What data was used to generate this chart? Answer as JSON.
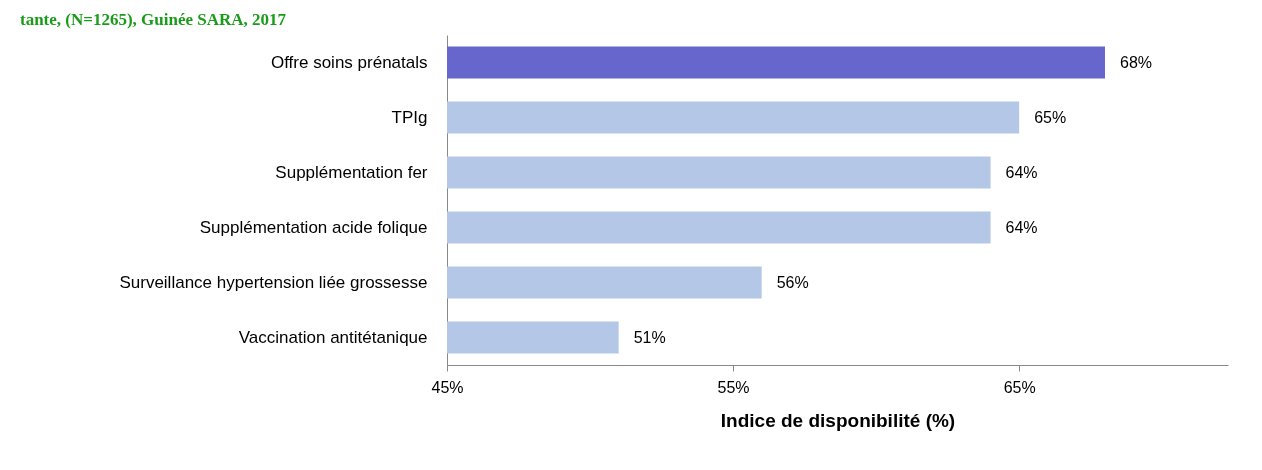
{
  "chart_data": {
    "type": "bar",
    "orientation": "horizontal",
    "title": "tante, (N=1265), Guinée SARA, 2017",
    "xlabel": "Indice de disponibilité (%)",
    "categories": [
      "Offre soins prénatals",
      "TPIg",
      "Supplémentation fer",
      "Supplémentation acide folique",
      "Surveillance hypertension liée grossesse",
      "Vaccination antitétanique"
    ],
    "values": [
      68,
      65,
      64,
      64,
      56,
      51
    ],
    "value_labels": [
      "68%",
      "65%",
      "64%",
      "64%",
      "56%",
      "51%"
    ],
    "colors": [
      "#6666cc",
      "#b4c7e7",
      "#b4c7e7",
      "#b4c7e7",
      "#b4c7e7",
      "#b4c7e7"
    ],
    "xlim": [
      45,
      72.3
    ],
    "xticks": [
      {
        "value": 45,
        "label": "45%"
      },
      {
        "value": 55,
        "label": "55%"
      },
      {
        "value": 65,
        "label": "65%"
      }
    ],
    "grid": false
  }
}
